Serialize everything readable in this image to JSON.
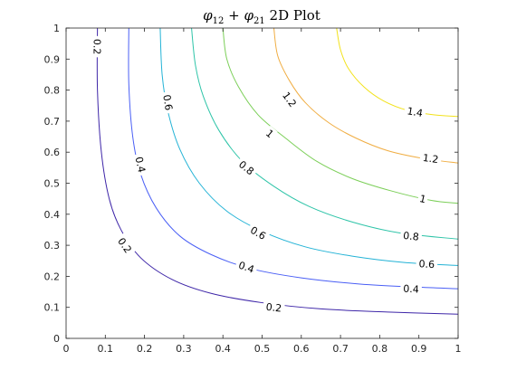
{
  "chart_data": {
    "type": "contour",
    "title": {
      "symbol": "φ",
      "sub1": "12",
      "plus": " + ",
      "sub2": "21",
      "suffix": " 2D Plot"
    },
    "xlabel": "",
    "ylabel": "",
    "xlim": [
      0,
      1
    ],
    "ylim": [
      0,
      1
    ],
    "x_ticks": [
      "0",
      "0.1",
      "0.2",
      "0.3",
      "0.4",
      "0.5",
      "0.6",
      "0.7",
      "0.8",
      "0.9",
      "1"
    ],
    "y_ticks": [
      "0",
      "0.1",
      "0.2",
      "0.3",
      "0.4",
      "0.5",
      "0.6",
      "0.7",
      "0.8",
      "0.9",
      "1"
    ],
    "grid": false,
    "levels": [
      {
        "value": 0.2,
        "label": "0.2",
        "color": "#3e26a8",
        "points": [
          [
            0.08,
            1.0
          ],
          [
            0.08,
            0.8
          ],
          [
            0.09,
            0.6
          ],
          [
            0.11,
            0.45
          ],
          [
            0.14,
            0.35
          ],
          [
            0.19,
            0.26
          ],
          [
            0.27,
            0.19
          ],
          [
            0.37,
            0.145
          ],
          [
            0.5,
            0.115
          ],
          [
            0.65,
            0.095
          ],
          [
            0.82,
            0.085
          ],
          [
            1.0,
            0.078
          ]
        ],
        "labels_at": [
          [
            0.08,
            0.94
          ],
          [
            0.15,
            0.3
          ],
          [
            0.53,
            0.1
          ]
        ]
      },
      {
        "value": 0.4,
        "label": "0.4",
        "color": "#4a5ff5",
        "points": [
          [
            0.16,
            1.0
          ],
          [
            0.16,
            0.82
          ],
          [
            0.17,
            0.65
          ],
          [
            0.19,
            0.53
          ],
          [
            0.23,
            0.42
          ],
          [
            0.29,
            0.33
          ],
          [
            0.37,
            0.27
          ],
          [
            0.47,
            0.225
          ],
          [
            0.6,
            0.195
          ],
          [
            0.75,
            0.175
          ],
          [
            0.9,
            0.165
          ],
          [
            1.0,
            0.16
          ]
        ],
        "labels_at": [
          [
            0.19,
            0.56
          ],
          [
            0.46,
            0.23
          ],
          [
            0.88,
            0.16
          ]
        ]
      },
      {
        "value": 0.6,
        "label": "0.6",
        "color": "#24b3d6",
        "points": [
          [
            0.24,
            1.0
          ],
          [
            0.245,
            0.85
          ],
          [
            0.26,
            0.73
          ],
          [
            0.29,
            0.61
          ],
          [
            0.34,
            0.5
          ],
          [
            0.41,
            0.41
          ],
          [
            0.5,
            0.345
          ],
          [
            0.61,
            0.295
          ],
          [
            0.73,
            0.265
          ],
          [
            0.86,
            0.245
          ],
          [
            1.0,
            0.235
          ]
        ],
        "labels_at": [
          [
            0.26,
            0.76
          ],
          [
            0.49,
            0.34
          ],
          [
            0.92,
            0.24
          ]
        ]
      },
      {
        "value": 0.8,
        "label": "0.8",
        "color": "#2ec4a8",
        "points": [
          [
            0.32,
            1.0
          ],
          [
            0.33,
            0.88
          ],
          [
            0.35,
            0.78
          ],
          [
            0.39,
            0.67
          ],
          [
            0.45,
            0.57
          ],
          [
            0.53,
            0.49
          ],
          [
            0.62,
            0.425
          ],
          [
            0.73,
            0.375
          ],
          [
            0.85,
            0.34
          ],
          [
            1.0,
            0.32
          ]
        ],
        "labels_at": [
          [
            0.46,
            0.55
          ],
          [
            0.88,
            0.33
          ]
        ]
      },
      {
        "value": 1,
        "label": "1",
        "color": "#7ccf59",
        "points": [
          [
            0.4,
            1.0
          ],
          [
            0.41,
            0.9
          ],
          [
            0.44,
            0.81
          ],
          [
            0.49,
            0.72
          ],
          [
            0.56,
            0.645
          ],
          [
            0.64,
            0.57
          ],
          [
            0.73,
            0.515
          ],
          [
            0.83,
            0.475
          ],
          [
            0.93,
            0.445
          ],
          [
            1.0,
            0.435
          ]
        ],
        "labels_at": [
          [
            0.52,
            0.66
          ],
          [
            0.91,
            0.45
          ]
        ]
      },
      {
        "value": 1.2,
        "label": "1.2",
        "color": "#f0ad42",
        "points": [
          [
            0.53,
            1.0
          ],
          [
            0.54,
            0.91
          ],
          [
            0.57,
            0.83
          ],
          [
            0.61,
            0.76
          ],
          [
            0.67,
            0.695
          ],
          [
            0.74,
            0.645
          ],
          [
            0.82,
            0.605
          ],
          [
            0.91,
            0.58
          ],
          [
            1.0,
            0.565
          ]
        ],
        "labels_at": [
          [
            0.57,
            0.77
          ],
          [
            0.93,
            0.58
          ]
        ]
      },
      {
        "value": 1.4,
        "label": "1.4",
        "color": "#f2e21b",
        "points": [
          [
            0.69,
            1.0
          ],
          [
            0.7,
            0.93
          ],
          [
            0.72,
            0.87
          ],
          [
            0.76,
            0.81
          ],
          [
            0.81,
            0.765
          ],
          [
            0.87,
            0.735
          ],
          [
            0.94,
            0.72
          ],
          [
            1.0,
            0.715
          ]
        ],
        "labels_at": [
          [
            0.89,
            0.73
          ]
        ]
      }
    ]
  }
}
